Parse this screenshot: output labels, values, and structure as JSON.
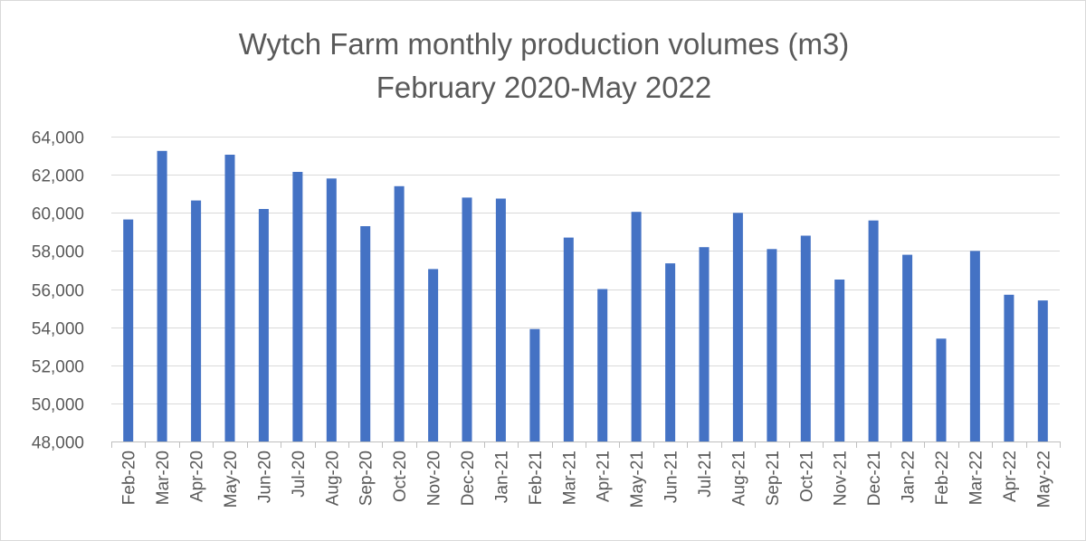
{
  "chart_data": {
    "type": "bar",
    "title": "Wytch Farm monthly production volumes (m3)",
    "subtitle": "February 2020-May 2022",
    "xlabel": "",
    "ylabel": "",
    "ylim": [
      48000,
      64000
    ],
    "yticks": [
      48000,
      50000,
      52000,
      54000,
      56000,
      58000,
      60000,
      62000,
      64000
    ],
    "ytick_labels": [
      "48,000",
      "50,000",
      "52,000",
      "54,000",
      "56,000",
      "58,000",
      "60,000",
      "62,000",
      "64,000"
    ],
    "grid": true,
    "legend": "none",
    "bar_color": "#4472c4",
    "categories": [
      "Feb-20",
      "Mar-20",
      "Apr-20",
      "May-20",
      "Jun-20",
      "Jul-20",
      "Aug-20",
      "Sep-20",
      "Oct-20",
      "Nov-20",
      "Dec-20",
      "Jan-21",
      "Feb-21",
      "Mar-21",
      "Apr-21",
      "May-21",
      "Jun-21",
      "Jul-21",
      "Aug-21",
      "Sep-21",
      "Oct-21",
      "Nov-21",
      "Dec-21",
      "Jan-22",
      "Feb-22",
      "Mar-22",
      "Apr-22",
      "May-22"
    ],
    "values": [
      59650,
      63250,
      60650,
      63050,
      60200,
      62150,
      61800,
      59300,
      61400,
      57050,
      60800,
      60750,
      53900,
      58700,
      56000,
      60050,
      57350,
      58200,
      60000,
      58100,
      58800,
      56500,
      59600,
      57800,
      53400,
      58000,
      55700,
      55400
    ]
  }
}
